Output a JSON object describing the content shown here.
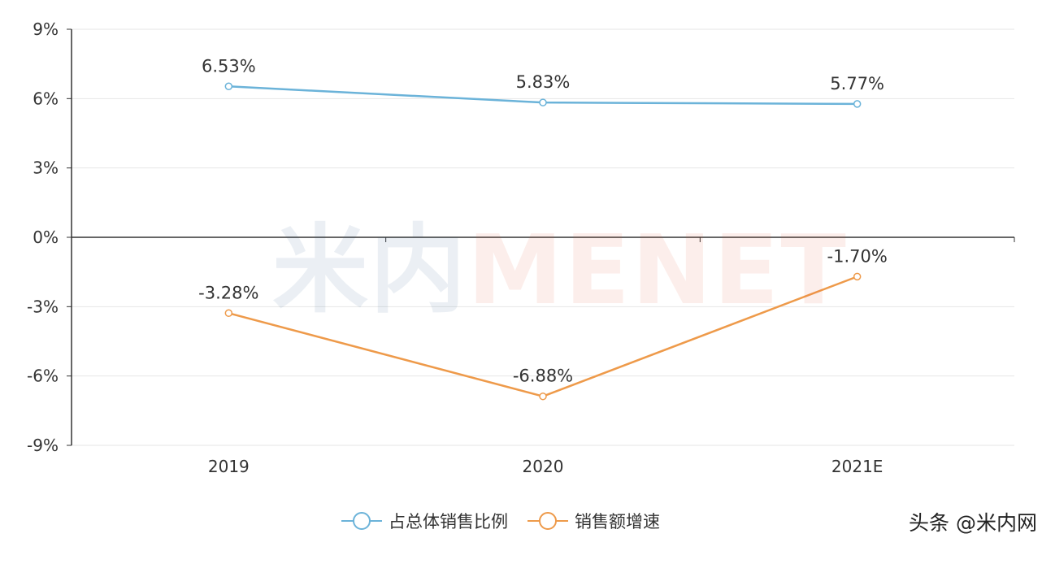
{
  "chart_data": {
    "type": "line",
    "categories": [
      "2019",
      "2020",
      "2021E"
    ],
    "series": [
      {
        "name": "占总体销售比例",
        "values": [
          6.53,
          5.83,
          5.77
        ],
        "labels": [
          "6.53%",
          "5.83%",
          "5.77%"
        ],
        "color": "#6bb3d9"
      },
      {
        "name": "销售额增速",
        "values": [
          -3.28,
          -6.88,
          -1.7
        ],
        "labels": [
          "-3.28%",
          "-6.88%",
          "-1.70%"
        ],
        "color": "#ee9a4a"
      }
    ],
    "y_ticks": [
      "9%",
      "6%",
      "3%",
      "0%",
      "-3%",
      "-6%",
      "-9%"
    ],
    "ylim": [
      -9,
      9
    ],
    "grid": true,
    "legend_position": "bottom-center"
  },
  "watermark": {
    "cn": "米内",
    "en": "MENET"
  },
  "source": "头条 @米内网"
}
